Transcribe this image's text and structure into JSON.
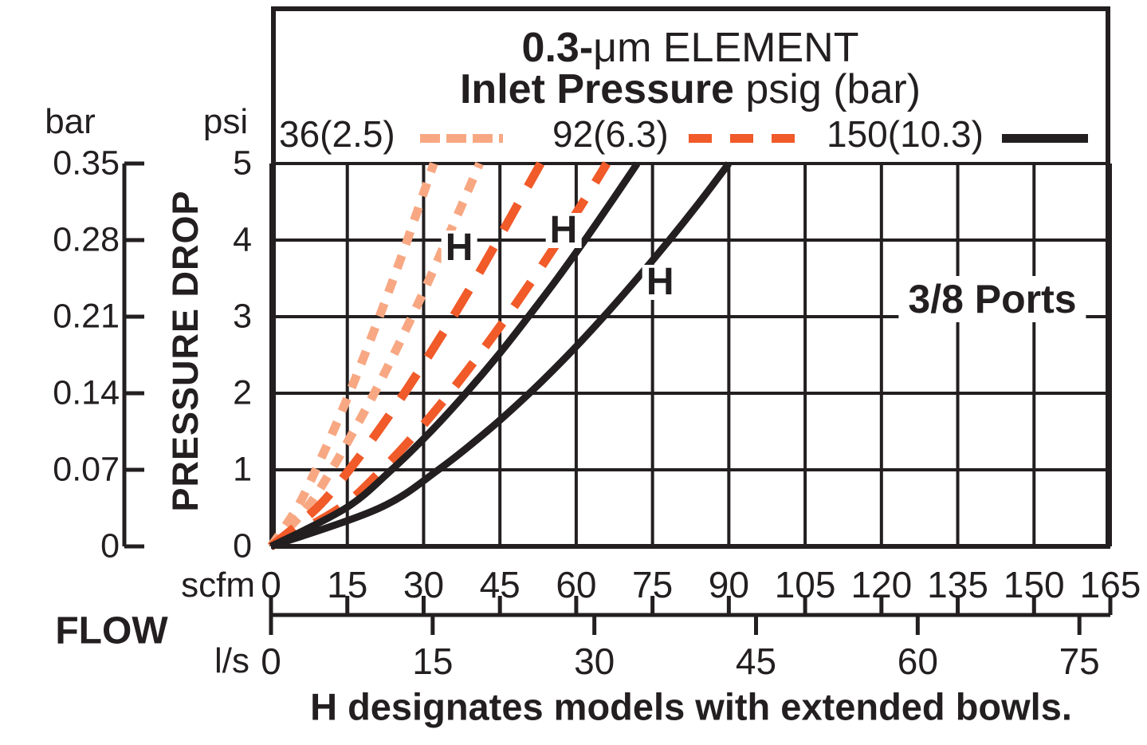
{
  "title": {
    "line1_bold": "0.3-",
    "line1_rest": "μm ELEMENT",
    "line2_bold": "Inlet Pressure",
    "line2_rest": " psig (bar)"
  },
  "legend": {
    "items": [
      {
        "label": "36(2.5)",
        "style": "dotted",
        "color": "#F7A883"
      },
      {
        "label": "92(6.3)",
        "style": "dashed",
        "color": "#F15A29"
      },
      {
        "label": "150(10.3)",
        "style": "solid",
        "color": "#231F20"
      }
    ]
  },
  "annotations": {
    "ports": "3/8 Ports",
    "h_marker": "H",
    "caption": "H designates models with extended bowls."
  },
  "y_axis": {
    "unit_left": "bar",
    "unit_right": "psi",
    "title": "PRESSURE DROP",
    "bar_ticks": [
      "0.35",
      "0.28",
      "0.21",
      "0.14",
      "0.07",
      "0"
    ],
    "psi_ticks": [
      "5",
      "4",
      "3",
      "2",
      "1",
      "0"
    ]
  },
  "x_axis": {
    "unit_top": "scfm",
    "unit_bottom": "l/s",
    "title": "FLOW",
    "scfm_ticks": [
      0,
      15,
      30,
      45,
      60,
      75,
      90,
      105,
      120,
      135,
      150,
      165
    ],
    "lps_ticks": [
      0,
      15,
      30,
      45,
      60,
      75
    ]
  },
  "chart_data": {
    "type": "line",
    "title": "0.3-μm ELEMENT",
    "subtitle": "Inlet Pressure psig (bar)",
    "xlabel": "FLOW",
    "x_units": [
      "scfm",
      "l/s"
    ],
    "ylabel": "PRESSURE DROP",
    "y_units": [
      "psi",
      "bar"
    ],
    "x_range_scfm": [
      0,
      165
    ],
    "y_range_psi": [
      0,
      5
    ],
    "scfm_per_ls": 2.1189,
    "grid": true,
    "legend_position": "top-inside",
    "series": [
      {
        "name": "36(2.5) standard",
        "inlet_pressure_psig": 36,
        "inlet_pressure_bar": 2.5,
        "model": "standard",
        "line": "dotted",
        "color": "#F7A883",
        "points_scfm_psi": [
          [
            0,
            0
          ],
          [
            5.1,
            0.5
          ],
          [
            8.8,
            1
          ],
          [
            12.2,
            1.5
          ],
          [
            15.4,
            2
          ],
          [
            18.4,
            2.5
          ],
          [
            21.3,
            3
          ],
          [
            24.1,
            3.5
          ],
          [
            26.8,
            4
          ],
          [
            29.4,
            4.5
          ],
          [
            32,
            5
          ]
        ]
      },
      {
        "name": "36(2.5) H extended bowl",
        "inlet_pressure_psig": 36,
        "inlet_pressure_bar": 2.5,
        "model": "H",
        "line": "dotted",
        "color": "#F7A883",
        "points_scfm_psi": [
          [
            0,
            0
          ],
          [
            7,
            0.5
          ],
          [
            11.9,
            1
          ],
          [
            16.2,
            1.5
          ],
          [
            20.3,
            2
          ],
          [
            24.1,
            2.5
          ],
          [
            27.7,
            3
          ],
          [
            31.2,
            3.5
          ],
          [
            34.5,
            4
          ],
          [
            37.8,
            4.5
          ],
          [
            41,
            5
          ]
        ]
      },
      {
        "name": "92(6.3) standard",
        "inlet_pressure_psig": 92,
        "inlet_pressure_bar": 6.3,
        "model": "standard",
        "line": "dashed",
        "color": "#F15A29",
        "points_scfm_psi": [
          [
            0,
            0
          ],
          [
            9,
            0.5
          ],
          [
            15.4,
            1
          ],
          [
            21,
            1.5
          ],
          [
            26.2,
            2
          ],
          [
            31.1,
            2.5
          ],
          [
            35.8,
            3
          ],
          [
            40.3,
            3.5
          ],
          [
            44.6,
            4
          ],
          [
            48.8,
            4.5
          ],
          [
            53,
            5
          ]
        ]
      },
      {
        "name": "92(6.3) H extended bowl",
        "inlet_pressure_psig": 92,
        "inlet_pressure_bar": 6.3,
        "model": "H",
        "line": "dashed",
        "color": "#F15A29",
        "points_scfm_psi": [
          [
            0,
            0
          ],
          [
            13.5,
            0.5
          ],
          [
            21.8,
            1
          ],
          [
            28.8,
            1.5
          ],
          [
            35.1,
            2
          ],
          [
            40.9,
            2.5
          ],
          [
            46.4,
            3
          ],
          [
            51.6,
            3.5
          ],
          [
            56.6,
            4
          ],
          [
            61.4,
            4.5
          ],
          [
            66,
            5
          ]
        ]
      },
      {
        "name": "150(10.3) standard",
        "inlet_pressure_psig": 150,
        "inlet_pressure_bar": 10.3,
        "model": "standard",
        "line": "solid",
        "color": "#231F20",
        "points_scfm_psi": [
          [
            0,
            0
          ],
          [
            14.7,
            0.5
          ],
          [
            23.7,
            1
          ],
          [
            31.4,
            1.5
          ],
          [
            38.3,
            2
          ],
          [
            44.7,
            2.5
          ],
          [
            50.6,
            3
          ],
          [
            56.3,
            3.5
          ],
          [
            61.7,
            4
          ],
          [
            66.9,
            4.5
          ],
          [
            72,
            5
          ]
        ]
      },
      {
        "name": "150(10.3) H extended bowl",
        "inlet_pressure_psig": 150,
        "inlet_pressure_bar": 10.3,
        "model": "H",
        "line": "solid",
        "color": "#231F20",
        "points_scfm_psi": [
          [
            0,
            0
          ],
          [
            21.3,
            0.5
          ],
          [
            32.9,
            1
          ],
          [
            42.4,
            1.5
          ],
          [
            50.8,
            2
          ],
          [
            58.4,
            2.5
          ],
          [
            65.4,
            3
          ],
          [
            72,
            3.5
          ],
          [
            78.3,
            4
          ],
          [
            84.3,
            4.5
          ],
          [
            90,
            5
          ]
        ]
      }
    ],
    "h_labels": [
      {
        "scfm": 37.0,
        "psi": 3.9
      },
      {
        "scfm": 57.5,
        "psi": 4.13
      },
      {
        "scfm": 76.5,
        "psi": 3.45
      }
    ]
  }
}
